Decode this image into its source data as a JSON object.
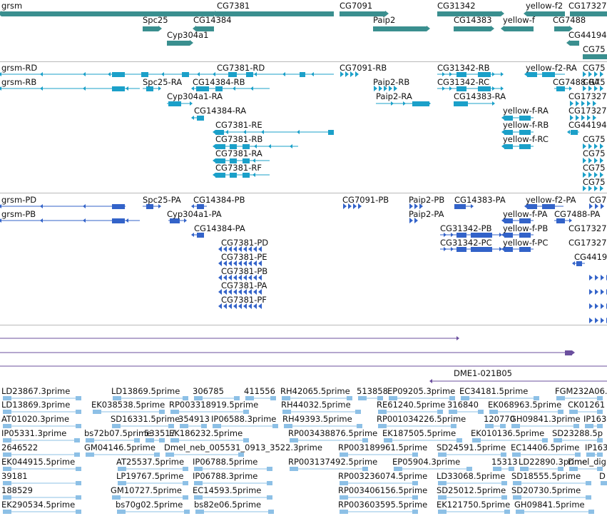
{
  "colors": {
    "gene": "#3a8f8f",
    "mrna": "#1ba0c9",
    "cds": "#3363c9",
    "match": "#6b4f9e",
    "est": "#8dc0e6",
    "separator": "#b9b9b9"
  },
  "tracks": {
    "genes": {
      "labels": [
        "grsm",
        "CG7381",
        "CG7091",
        "CG31342",
        "yellow-f2",
        "CG17327",
        "Spc25",
        "CG14384",
        "Paip2",
        "CG14383",
        "yellow-f",
        "CG7488",
        "Cyp304a1",
        "CG44194",
        "CG75"
      ]
    },
    "transcripts": {
      "labels": [
        "grsm-RD",
        "CG7381-RD",
        "CG7091-RB",
        "CG31342-RB",
        "yellow-f2-RA",
        "CG75",
        "grsm-RB",
        "Spc25-RA",
        "CG14384-RB",
        "Paip2-RB",
        "CG31342-RC",
        "CG7488-RA",
        "CG75",
        "Cyp304a1-RA",
        "Paip2-RA",
        "CG14383-RA",
        "CG17327",
        "CG14384-RA",
        "yellow-f-RA",
        "CG17327",
        "CG7381-RE",
        "yellow-f-RB",
        "CG44194",
        "CG7381-RB",
        "yellow-f-RC",
        "CG75",
        "CG7381-RA",
        "CG75",
        "CG7381-RF",
        "CG75",
        "CG75"
      ]
    },
    "cds": {
      "labels": [
        "grsm-PD",
        "Spc25-PA",
        "CG14384-PB",
        "CG7091-PB",
        "Paip2-PB",
        "CG14383-PA",
        "yellow-f2-PA",
        "CG7",
        "grsm-PB",
        "Cyp304a1-PA",
        "Paip2-PA",
        "yellow-f-PA",
        "CG7488-PA",
        "CG14384-PA",
        "CG31342-PB",
        "yellow-f-PB",
        "CG17327",
        "CG7381-PD",
        "CG31342-PC",
        "yellow-f-PC",
        "CG17327",
        "CG7381-PE",
        "CG4419",
        "CG7381-PB",
        "CG7381-PA",
        "CG7381-PF"
      ]
    },
    "matches": {
      "labels": [
        "DME1-021B05"
      ]
    },
    "ests": {
      "labels": [
        "LD23867.3prime",
        "LD13869.5prime",
        "306785",
        "411556",
        "RH42065.5prime",
        "513858",
        "EP09205.3prime",
        "EC34181.5prime",
        "FGM232A06.",
        "LD13869.3prime",
        "EK038538.5prime",
        "RP003318919.5prime",
        "RH44032.5prime",
        "RE61240.5prime",
        "316840",
        "EK068963.5prime",
        "CK01261",
        "AT01020.3prime",
        "SD16331.5prime",
        "354913",
        "IP06588.3prime",
        "RH49393.5prime",
        "RP001034226.5prime",
        "120770",
        "GH09841.3prime",
        "IP163",
        "IP05331.3prime",
        "bs72b07.5prime",
        "533517",
        "EK186232.5prime",
        "RP003438876.5prime",
        "EK187505.5prime",
        "EK010136.5prime",
        "SD23288.5p",
        "2646522",
        "GM04146.5prime",
        "Dmel_neb_005531_0913_3522.3prime",
        "RP003189961.5prime",
        "SD24591.5prime",
        "EC14406.5prime",
        "IP163",
        "EK044915.5prime",
        "AT25537.5prime",
        "IP06788.5prime",
        "RP003137492.5prime",
        "EP05904.3prime",
        "15313",
        "LD22890.3prime",
        "Dmel_dig",
        "39181",
        "LP19767.5prime",
        "IP06788.3prime",
        "RP003236074.5prime",
        "LD33068.5prime",
        "SD18555.5prime",
        "D",
        "188529",
        "GM10727.5prime",
        "EC14593.5prime",
        "RP003406156.5prime",
        "SD25012.5prime",
        "SD20730.5prime",
        "EK290534.5prime",
        "bs70g02.5prime",
        "bs82e06.5prime",
        "RP003603595.5prime",
        "EK121750.5prime",
        "GH09841.5prime"
      ]
    }
  }
}
